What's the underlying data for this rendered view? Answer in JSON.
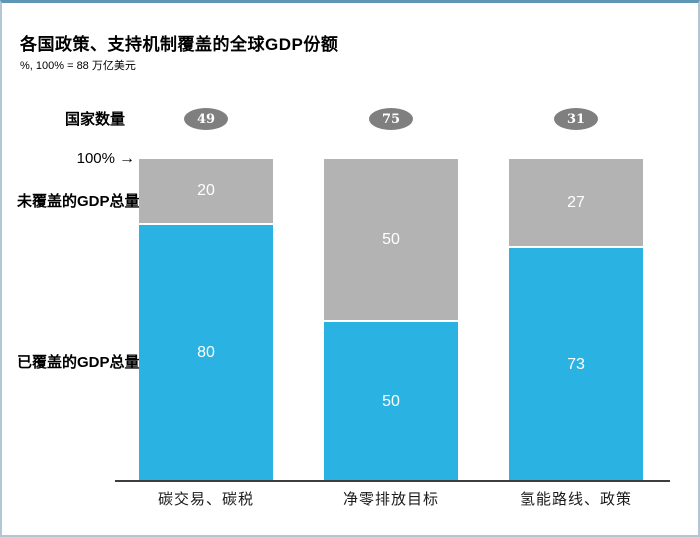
{
  "chart_data": {
    "type": "bar",
    "stacked": true,
    "title": "各国政策、支持机制覆盖的全球GDP份额",
    "subtitle": "%, 100% = 88 万亿美元",
    "row_label": "国家数量",
    "axis_top_label": "100%",
    "arrow_glyph": "→",
    "ylim": [
      0,
      100
    ],
    "legend_position": "left-side-row-labels",
    "grid": false,
    "categories": [
      "碳交易、碳税",
      "净零排放目标",
      "氢能路线、政策"
    ],
    "country_counts": [
      49,
      75,
      31
    ],
    "series": [
      {
        "name": "未覆盖的GDP总量",
        "color": "#b3b3b3",
        "values": [
          20,
          50,
          27
        ]
      },
      {
        "name": "已覆盖的GDP总量",
        "color": "#29b2e2",
        "values": [
          80,
          50,
          73
        ]
      }
    ],
    "bars": [
      {
        "category": "碳交易、碳税",
        "count": "49",
        "uncovered": 20,
        "covered": 80
      },
      {
        "category": "净零排放目标",
        "count": "75",
        "uncovered": 50,
        "covered": 50
      },
      {
        "category": "氢能路线、政策",
        "count": "31",
        "uncovered": 27,
        "covered": 73
      }
    ],
    "colors": {
      "covered": "#29b2e2",
      "uncovered": "#b3b3b3",
      "count_badge": "#7f7f7f",
      "axis": "#3d3d3d",
      "label_text": "#ffffff"
    }
  }
}
